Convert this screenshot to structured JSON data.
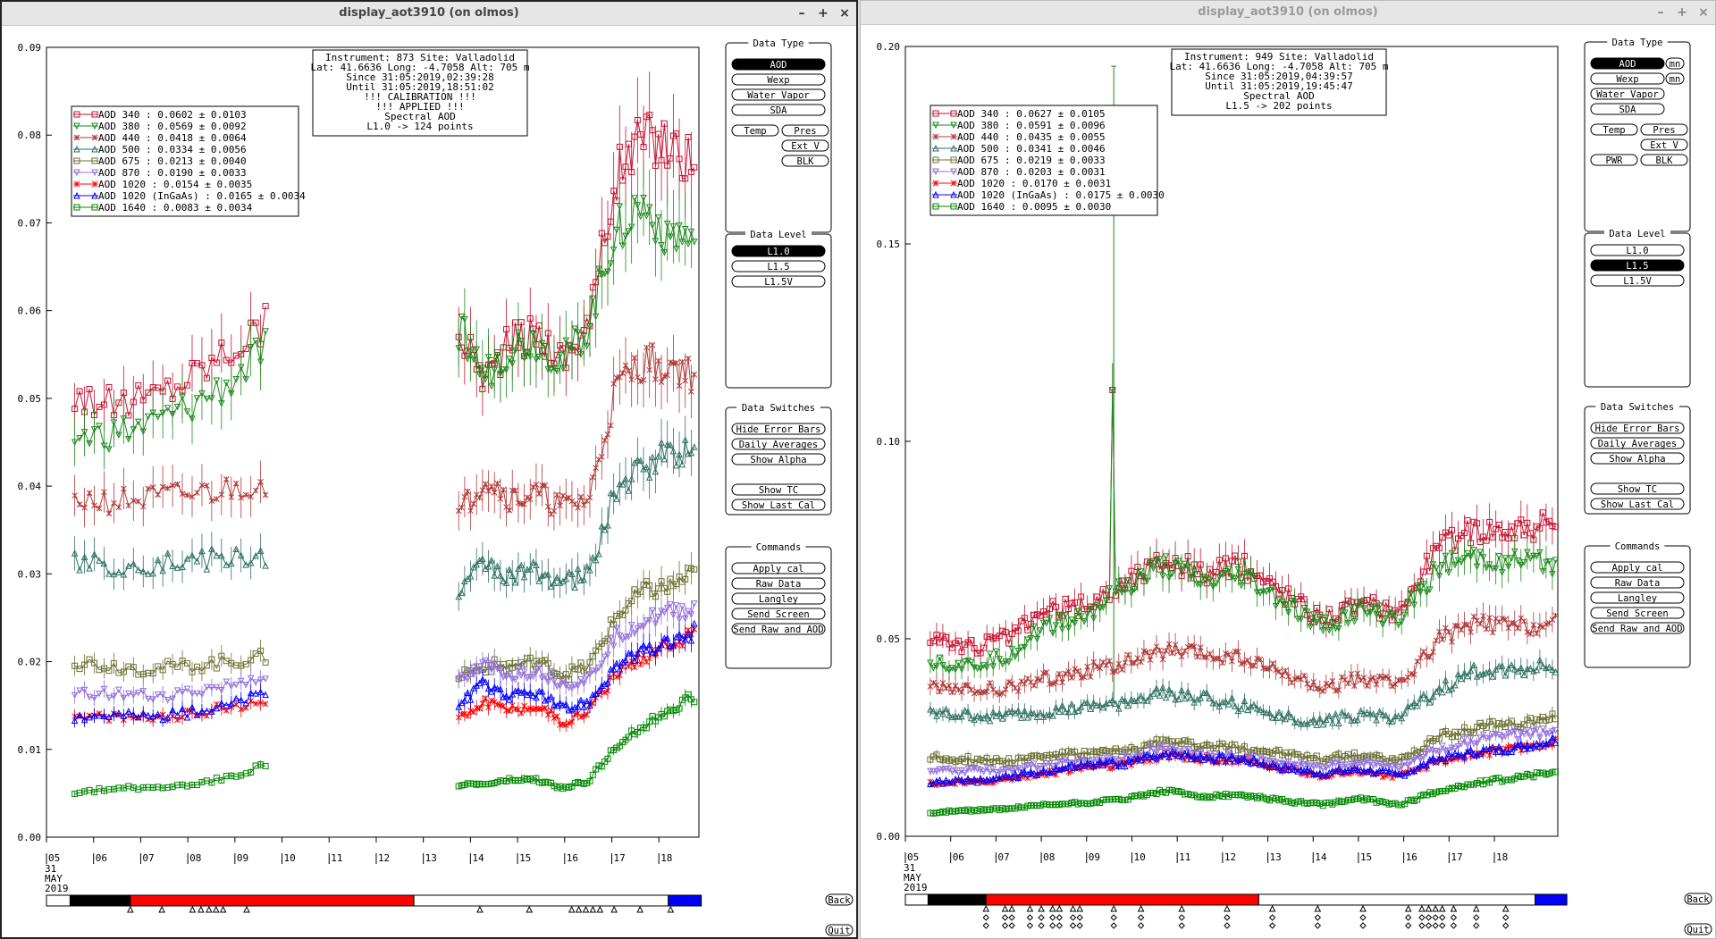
{
  "windows": [
    {
      "title": "display_aot3910 (on olmos)",
      "info": [
        "Instrument: 873 Site: Valladolid",
        "Lat: 41.6636 Long: -4.7058 Alt: 705 m",
        "Since 31:05:2019,02:39:28",
        "Until 31:05:2019,18:51:02",
        "!!! CALIBRATION !!!",
        "!!!   APPLIED   !!!",
        "Spectral AOD",
        "L1.0 -> 124 points"
      ],
      "legend": [
        {
          "label": "AOD 340  : 0.0602 ± 0.0103",
          "color": "#c8102e",
          "marker": "square"
        },
        {
          "label": "AOD 380  : 0.0569 ± 0.0092",
          "color": "#1a8a1a",
          "marker": "tri-down"
        },
        {
          "label": "AOD 440  : 0.0418 ± 0.0064",
          "color": "#b03838",
          "marker": "star"
        },
        {
          "label": "AOD 500  : 0.0334 ± 0.0056",
          "color": "#2e7060",
          "marker": "tri-up"
        },
        {
          "label": "AOD 675  : 0.0213 ± 0.0040",
          "color": "#6b7030",
          "marker": "square"
        },
        {
          "label": "AOD 870  : 0.0190 ± 0.0033",
          "color": "#9370db",
          "marker": "tri-down"
        },
        {
          "label": "AOD 1020  : 0.0154 ± 0.0035",
          "color": "#ff0000",
          "marker": "star"
        },
        {
          "label": "AOD 1020 (InGaAs)  : 0.0165 ± 0.0034",
          "color": "#0000ff",
          "marker": "tri-up"
        },
        {
          "label": "AOD 1640  : 0.0083 ± 0.0034",
          "color": "#008800",
          "marker": "square"
        }
      ],
      "level_active": 0,
      "extra_buttons": false,
      "ticks_below": [
        "05",
        "06",
        "07",
        "08",
        "09",
        "10",
        "11",
        "12",
        "13",
        "14",
        "15",
        "16",
        "17",
        "18"
      ],
      "date_label": [
        "31",
        "MAY",
        "2019"
      ],
      "timebar": [
        {
          "from": 5.5,
          "to": 6.78,
          "color": "#000000"
        },
        {
          "from": 6.78,
          "to": 12.8,
          "color": "#ff0000"
        },
        {
          "from": 12.8,
          "to": 18.2,
          "color": "#ffffff"
        },
        {
          "from": 18.2,
          "to": 18.9,
          "color": "#0000ff"
        }
      ],
      "marks": [
        6.78,
        7.45,
        8.1,
        8.28,
        8.45,
        8.6,
        8.75,
        9.25,
        14.2,
        15.25,
        16.15,
        16.3,
        16.45,
        16.6,
        16.75,
        17.05,
        17.6,
        18.25
      ],
      "diamonds": false
    },
    {
      "title": "display_aot3910 (on olmos)",
      "info": [
        "Instrument: 949 Site: Valladolid",
        "Lat: 41.6636 Long: -4.7058 Alt: 705 m",
        "Since 31:05:2019,04:39:57",
        "Until 31:05:2019,19:45:47",
        "Spectral AOD",
        "L1.5 -> 202 points"
      ],
      "legend": [
        {
          "label": "AOD 340  : 0.0627 ± 0.0105",
          "color": "#c8102e",
          "marker": "square"
        },
        {
          "label": "AOD 380  : 0.0591 ± 0.0096",
          "color": "#1a8a1a",
          "marker": "tri-down"
        },
        {
          "label": "AOD 440  : 0.0435 ± 0.0055",
          "color": "#b03838",
          "marker": "star"
        },
        {
          "label": "AOD 500  : 0.0341 ± 0.0046",
          "color": "#2e7060",
          "marker": "tri-up"
        },
        {
          "label": "AOD 675  : 0.0219 ± 0.0033",
          "color": "#6b7030",
          "marker": "square"
        },
        {
          "label": "AOD 870  : 0.0203 ± 0.0031",
          "color": "#9370db",
          "marker": "tri-down"
        },
        {
          "label": "AOD 1020  : 0.0170 ± 0.0031",
          "color": "#ff0000",
          "marker": "star"
        },
        {
          "label": "AOD 1020 (InGaAs)  : 0.0175 ± 0.0030",
          "color": "#0000ff",
          "marker": "tri-up"
        },
        {
          "label": "AOD 1640  : 0.0095 ± 0.0030",
          "color": "#008800",
          "marker": "square"
        }
      ],
      "level_active": 1,
      "extra_buttons": true,
      "ticks_below": [
        "05",
        "06",
        "07",
        "08",
        "09",
        "10",
        "11",
        "12",
        "13",
        "14",
        "15",
        "16",
        "17",
        "18"
      ],
      "date_label": [
        "31",
        "MAY",
        "2019"
      ],
      "timebar": [
        {
          "from": 5.5,
          "to": 6.78,
          "color": "#000000"
        },
        {
          "from": 6.78,
          "to": 12.8,
          "color": "#ff0000"
        },
        {
          "from": 12.8,
          "to": 18.9,
          "color": "#ffffff"
        },
        {
          "from": 18.9,
          "to": 19.6,
          "color": "#0000ff"
        }
      ],
      "marks": [
        6.78,
        7.2,
        7.35,
        7.75,
        8.0,
        8.25,
        8.4,
        8.7,
        8.85,
        9.6,
        10.2,
        11.1,
        12.1,
        13.1,
        14.1,
        15.1,
        16.1,
        16.4,
        16.55,
        16.7,
        16.85,
        17.1,
        17.6,
        18.25
      ],
      "diamonds": true
    }
  ],
  "panels": {
    "data_type": {
      "title": "Data Type",
      "items": [
        "AOD",
        "Wexp",
        "Water Vapor",
        "SDA"
      ],
      "row2": [
        "Temp",
        "Pres"
      ],
      "row3": [
        "Ext V"
      ],
      "row4": [
        "BLK"
      ],
      "pwr": "PWR",
      "mn": "mn"
    },
    "data_level": {
      "title": "Data Level",
      "items": [
        "L1.0",
        "L1.5",
        "L1.5V"
      ]
    },
    "data_switches": {
      "title": "Data Switches",
      "items": [
        "Hide Error Bars",
        "Daily Averages",
        "Show Alpha",
        "Show TC",
        "Show Last Cal"
      ]
    },
    "commands": {
      "title": "Commands",
      "items": [
        "Apply cal",
        "Raw Data",
        "Langley",
        "Send Screen",
        "Send Raw and AOD"
      ]
    },
    "back": "Back",
    "quit": "Quit"
  },
  "chart_data": [
    {
      "type": "scatter",
      "title": "",
      "xlabel": "",
      "ylabel": "",
      "xlim": [
        5.0,
        18.85
      ],
      "ylim": [
        0.0,
        0.09
      ],
      "yticks": [
        "0.00",
        "0.01",
        "0.02",
        "0.03",
        "0.04",
        "0.05",
        "0.06",
        "0.07",
        "0.08",
        "0.09"
      ],
      "grid": false,
      "legend_position": "top-left",
      "segments": [
        [
          5.6,
          9.65
        ],
        [
          13.75,
          18.75
        ]
      ],
      "series": [
        {
          "name": "AOD 340",
          "base1": [
            0.0505,
            0.0492,
            0.0502,
            0.0525,
            0.0555,
            0.0585
          ],
          "base2": [
            0.058,
            0.0525,
            0.0565,
            0.0575,
            0.0545,
            0.059,
            0.075,
            0.08,
            0.079,
            0.077
          ]
        },
        {
          "name": "AOD 380",
          "base1": [
            0.0455,
            0.046,
            0.047,
            0.049,
            0.0515,
            0.0555
          ],
          "base2": [
            0.058,
            0.0525,
            0.056,
            0.0565,
            0.054,
            0.0585,
            0.0695,
            0.072,
            0.069,
            0.068
          ]
        },
        {
          "name": "AOD 440",
          "base1": [
            0.0385,
            0.0382,
            0.0385,
            0.039,
            0.0395,
            0.0405
          ],
          "base2": [
            0.0365,
            0.041,
            0.0385,
            0.039,
            0.0375,
            0.0385,
            0.051,
            0.054,
            0.054,
            0.0525
          ]
        },
        {
          "name": "AOD 500",
          "base1": [
            0.0313,
            0.031,
            0.0312,
            0.0315,
            0.0317,
            0.032
          ],
          "base2": [
            0.0275,
            0.0315,
            0.0295,
            0.0305,
            0.029,
            0.03,
            0.0395,
            0.042,
            0.044,
            0.044
          ]
        },
        {
          "name": "AOD 675",
          "base1": [
            0.02,
            0.0195,
            0.0192,
            0.0195,
            0.02,
            0.0205
          ],
          "base2": [
            0.0185,
            0.0195,
            0.0195,
            0.02,
            0.0185,
            0.0195,
            0.025,
            0.028,
            0.0285,
            0.03
          ]
        },
        {
          "name": "AOD 870",
          "base1": [
            0.0162,
            0.0163,
            0.016,
            0.0165,
            0.0172,
            0.0185
          ],
          "base2": [
            0.0175,
            0.0195,
            0.0185,
            0.019,
            0.0175,
            0.018,
            0.023,
            0.0245,
            0.0255,
            0.026
          ]
        },
        {
          "name": "AOD 1020",
          "base1": [
            0.0135,
            0.0136,
            0.0135,
            0.014,
            0.0148,
            0.0155
          ],
          "base2": [
            0.0135,
            0.0155,
            0.0145,
            0.015,
            0.013,
            0.0145,
            0.0185,
            0.0205,
            0.022,
            0.023
          ]
        },
        {
          "name": "AOD 1020 (InGaAs)",
          "base1": [
            0.0138,
            0.014,
            0.0138,
            0.0142,
            0.015,
            0.0165
          ],
          "base2": [
            0.015,
            0.0175,
            0.016,
            0.0165,
            0.0145,
            0.0155,
            0.0195,
            0.021,
            0.022,
            0.0235
          ]
        },
        {
          "name": "AOD 1640",
          "base1": [
            0.005,
            0.0056,
            0.0056,
            0.006,
            0.0068,
            0.0082
          ],
          "base2": [
            0.006,
            0.006,
            0.0065,
            0.0065,
            0.0055,
            0.0065,
            0.0105,
            0.0125,
            0.0145,
            0.016
          ]
        }
      ]
    },
    {
      "type": "scatter",
      "title": "",
      "xlabel": "",
      "ylabel": "",
      "xlim": [
        5.0,
        19.4
      ],
      "ylim": [
        0.0,
        0.2
      ],
      "yticks": [
        "0.00",
        "0.05",
        "0.10",
        "0.15",
        "0.20"
      ],
      "grid": false,
      "legend_position": "top-left",
      "segments": [
        [
          5.55,
          19.35
        ]
      ],
      "spike": {
        "x": 9.6,
        "series": "AOD 380",
        "value": 0.113,
        "error_top": 0.195
      },
      "series": [
        {
          "name": "AOD 340",
          "base": [
            0.051,
            0.0475,
            0.0505,
            0.057,
            0.0585,
            0.064,
            0.0705,
            0.0665,
            0.0685,
            0.062,
            0.0555,
            0.0585,
            0.057,
            0.0735,
            0.078,
            0.078,
            0.079
          ]
        },
        {
          "name": "AOD 380",
          "base": [
            0.0445,
            0.043,
            0.046,
            0.0535,
            0.056,
            0.063,
            0.0685,
            0.064,
            0.066,
            0.0595,
            0.053,
            0.057,
            0.055,
            0.068,
            0.0705,
            0.0695,
            0.069
          ]
        },
        {
          "name": "AOD 440",
          "base": [
            0.0375,
            0.037,
            0.0375,
            0.04,
            0.042,
            0.044,
            0.047,
            0.046,
            0.045,
            0.041,
            0.0375,
            0.04,
            0.038,
            0.05,
            0.054,
            0.053,
            0.054
          ]
        },
        {
          "name": "AOD 500",
          "base": [
            0.031,
            0.0305,
            0.0305,
            0.0315,
            0.0325,
            0.034,
            0.0365,
            0.035,
            0.033,
            0.0305,
            0.029,
            0.031,
            0.03,
            0.037,
            0.042,
            0.0425,
            0.043
          ]
        },
        {
          "name": "AOD 675",
          "base": [
            0.02,
            0.0195,
            0.0192,
            0.0205,
            0.021,
            0.0215,
            0.024,
            0.023,
            0.0225,
            0.021,
            0.0195,
            0.0205,
            0.019,
            0.025,
            0.0275,
            0.0285,
            0.03
          ]
        },
        {
          "name": "AOD 870",
          "base": [
            0.0165,
            0.0165,
            0.017,
            0.018,
            0.019,
            0.02,
            0.0225,
            0.021,
            0.02,
            0.019,
            0.0175,
            0.0185,
            0.0175,
            0.022,
            0.0245,
            0.0255,
            0.0265
          ]
        },
        {
          "name": "AOD 1020",
          "base": [
            0.0135,
            0.0135,
            0.0145,
            0.016,
            0.0175,
            0.018,
            0.0205,
            0.0195,
            0.019,
            0.017,
            0.0155,
            0.0165,
            0.015,
            0.019,
            0.021,
            0.022,
            0.024
          ]
        },
        {
          "name": "AOD 1020 (InGaAs)",
          "base": [
            0.0138,
            0.014,
            0.015,
            0.0165,
            0.018,
            0.0185,
            0.021,
            0.02,
            0.0195,
            0.0175,
            0.016,
            0.017,
            0.0155,
            0.0195,
            0.0215,
            0.0225,
            0.0245
          ]
        },
        {
          "name": "AOD 1640",
          "base": [
            0.006,
            0.0065,
            0.007,
            0.008,
            0.0085,
            0.0095,
            0.0115,
            0.01,
            0.0105,
            0.009,
            0.008,
            0.0095,
            0.008,
            0.0115,
            0.0135,
            0.015,
            0.0165
          ]
        }
      ]
    }
  ]
}
